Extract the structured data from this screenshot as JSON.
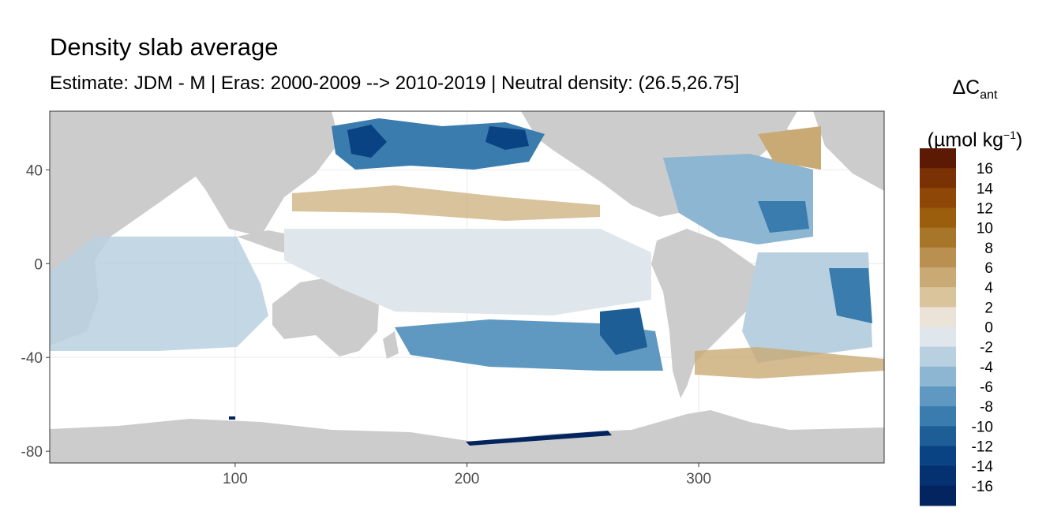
{
  "chart_data": {
    "type": "heatmap",
    "title": "Density slab average",
    "subtitle": "Estimate: JDM - M | Eras: 2000-2009 --> 2010-2019 | Neutral density: (26.5,26.75]",
    "xlabel": "",
    "ylabel": "",
    "xlim": [
      20,
      380
    ],
    "ylim": [
      -85,
      65
    ],
    "x_ticks": [
      100,
      200,
      300
    ],
    "y_ticks": [
      40,
      0,
      -40,
      -80
    ],
    "grid": true,
    "legend": {
      "placement": "right",
      "title_main": "ΔC",
      "title_sub": "ant",
      "unit_main": "(µmol kg",
      "unit_sup": "−1",
      "unit_close": ")",
      "labels": [
        "16",
        "14",
        "12",
        "10",
        "8",
        "6",
        "4",
        "2",
        "0",
        "-2",
        "-4",
        "-6",
        "-8",
        "-10",
        "-12",
        "-14",
        "-16"
      ],
      "colors": [
        "#5c1a04",
        "#7a3104",
        "#8e4706",
        "#9a5e0c",
        "#a87628",
        "#b99050",
        "#c9aa74",
        "#dac49c",
        "#ebe3d7",
        "#dfe7ec",
        "#b8d0df",
        "#8cb6d2",
        "#5f99c1",
        "#3a7cad",
        "#1e5e96",
        "#0a4383",
        "#053170",
        "#03245e"
      ]
    },
    "panel_background": "#ffffff",
    "land_color": "#cccccc"
  }
}
